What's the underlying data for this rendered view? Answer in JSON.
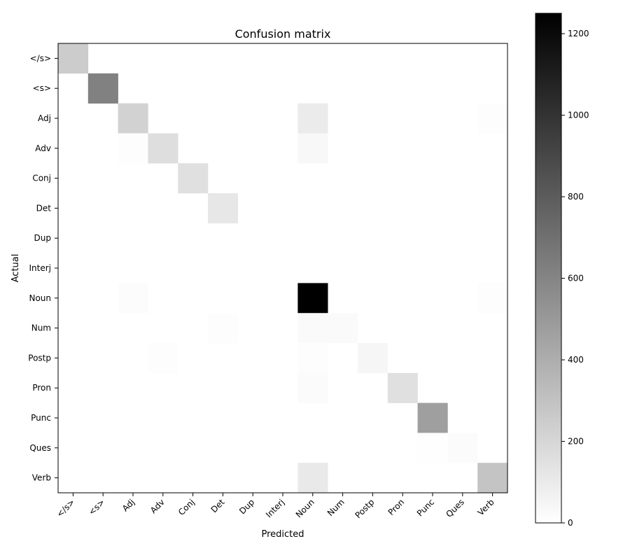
{
  "chart_data": {
    "type": "heatmap",
    "title": "Confusion matrix",
    "xlabel": "Predicted",
    "ylabel": "Actual",
    "labels": [
      "</s>",
      "<s>",
      "Adj",
      "Adv",
      "Conj",
      "Det",
      "Dup",
      "Interj",
      "Noun",
      "Num",
      "Postp",
      "Pron",
      "Punc",
      "Ques",
      "Verb"
    ],
    "vmin": 0,
    "vmax": 1250,
    "colorbar_ticks": [
      0,
      200,
      400,
      600,
      800,
      1000,
      1200
    ],
    "colormap": "gray_r",
    "cells": [
      {
        "row": 0,
        "col": 0,
        "value": 250
      },
      {
        "row": 1,
        "col": 1,
        "value": 620
      },
      {
        "row": 2,
        "col": 2,
        "value": 220
      },
      {
        "row": 2,
        "col": 8,
        "value": 100
      },
      {
        "row": 2,
        "col": 14,
        "value": 10
      },
      {
        "row": 3,
        "col": 2,
        "value": 8
      },
      {
        "row": 3,
        "col": 3,
        "value": 160
      },
      {
        "row": 3,
        "col": 8,
        "value": 35
      },
      {
        "row": 4,
        "col": 4,
        "value": 150
      },
      {
        "row": 5,
        "col": 5,
        "value": 120
      },
      {
        "row": 8,
        "col": 2,
        "value": 15
      },
      {
        "row": 8,
        "col": 8,
        "value": 1250
      },
      {
        "row": 8,
        "col": 14,
        "value": 10
      },
      {
        "row": 9,
        "col": 5,
        "value": 8
      },
      {
        "row": 9,
        "col": 8,
        "value": 25
      },
      {
        "row": 9,
        "col": 9,
        "value": 25
      },
      {
        "row": 10,
        "col": 3,
        "value": 12
      },
      {
        "row": 10,
        "col": 8,
        "value": 10
      },
      {
        "row": 10,
        "col": 10,
        "value": 45
      },
      {
        "row": 11,
        "col": 8,
        "value": 20
      },
      {
        "row": 11,
        "col": 11,
        "value": 150
      },
      {
        "row": 12,
        "col": 12,
        "value": 470
      },
      {
        "row": 13,
        "col": 12,
        "value": 5
      },
      {
        "row": 13,
        "col": 13,
        "value": 20
      },
      {
        "row": 14,
        "col": 8,
        "value": 110
      },
      {
        "row": 14,
        "col": 14,
        "value": 290
      }
    ]
  }
}
